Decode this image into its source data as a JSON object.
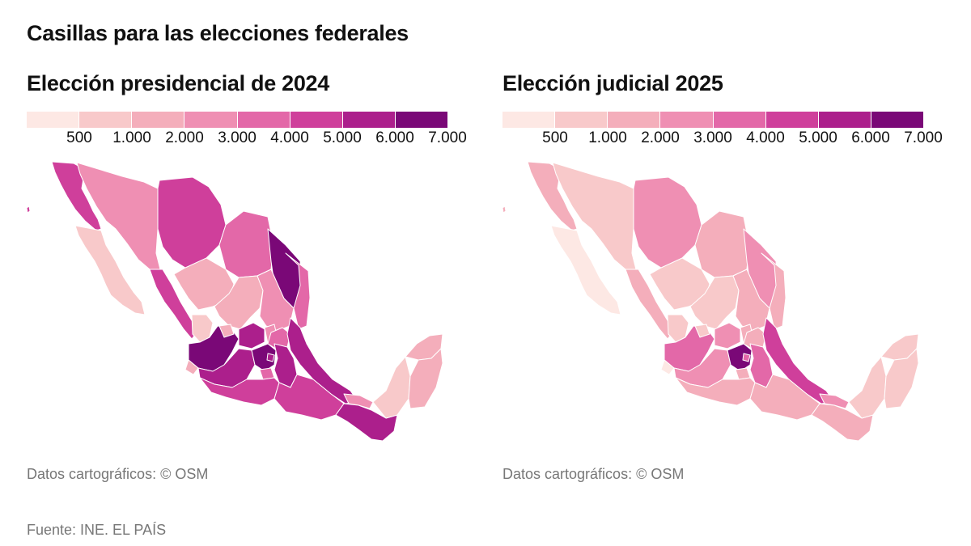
{
  "title": "Casillas para las elecciones federales",
  "scale": {
    "colors": [
      "#fde8e4",
      "#f8c9ca",
      "#f4aebb",
      "#ef8fb3",
      "#e368a8",
      "#cf3f9b",
      "#ac1f8c",
      "#7a0877"
    ],
    "tick_labels": [
      "500",
      "1.000",
      "2.000",
      "3.000",
      "4.000",
      "5.000",
      "6.000",
      "7.000"
    ]
  },
  "panels": [
    {
      "title": "Elección presidencial de 2024",
      "credit": "Datos cartográficos: © OSM",
      "regions": {
        "baja-california": "#cf3f9b",
        "baja-california-sur": "#f8c9ca",
        "sonora": "#ef8fb3",
        "chihuahua": "#cf3f9b",
        "coahuila": "#e368a8",
        "nuevo-leon": "#7a0877",
        "tamaulipas": "#e368a8",
        "sinaloa": "#cf3f9b",
        "durango": "#f4aebb",
        "zacatecas": "#f4aebb",
        "san-luis-potosi": "#ef8fb3",
        "nayarit": "#f8c9ca",
        "jalisco": "#7a0877",
        "aguascalientes": "#f4aebb",
        "guanajuato": "#ac1f8c",
        "queretaro": "#ef8fb3",
        "hidalgo": "#e368a8",
        "veracruz": "#ac1f8c",
        "colima": "#f4aebb",
        "michoacan": "#ac1f8c",
        "mexico": "#7a0877",
        "cdmx": "#ac1f8c",
        "morelos": "#e368a8",
        "tlaxcala": "#f4aebb",
        "puebla": "#ac1f8c",
        "guerrero": "#cf3f9b",
        "oaxaca": "#cf3f9b",
        "tabasco": "#ef8fb3",
        "chiapas": "#ac1f8c",
        "campeche": "#f8c9ca",
        "yucatan": "#f4aebb",
        "quintana-roo": "#f4aebb"
      }
    },
    {
      "title": "Elección judicial 2025",
      "credit": "Datos cartográficos: © OSM",
      "regions": {
        "baja-california": "#f4aebb",
        "baja-california-sur": "#fde8e4",
        "sonora": "#f8c9ca",
        "chihuahua": "#ef8fb3",
        "coahuila": "#f4aebb",
        "nuevo-leon": "#ef8fb3",
        "tamaulipas": "#f4aebb",
        "sinaloa": "#f4aebb",
        "durango": "#f8c9ca",
        "zacatecas": "#f8c9ca",
        "san-luis-potosi": "#f4aebb",
        "nayarit": "#f8c9ca",
        "jalisco": "#e368a8",
        "aguascalientes": "#f8c9ca",
        "guanajuato": "#ef8fb3",
        "queretaro": "#f4aebb",
        "hidalgo": "#f4aebb",
        "veracruz": "#cf3f9b",
        "colima": "#fde8e4",
        "michoacan": "#ef8fb3",
        "mexico": "#7a0877",
        "cdmx": "#e368a8",
        "morelos": "#f4aebb",
        "tlaxcala": "#f8c9ca",
        "puebla": "#e368a8",
        "guerrero": "#f4aebb",
        "oaxaca": "#f4aebb",
        "tabasco": "#ef8fb3",
        "chiapas": "#f4aebb",
        "campeche": "#f8c9ca",
        "yucatan": "#f8c9ca",
        "quintana-roo": "#f8c9ca"
      }
    }
  ],
  "source": "Fuente: INE. EL PAÍS"
}
